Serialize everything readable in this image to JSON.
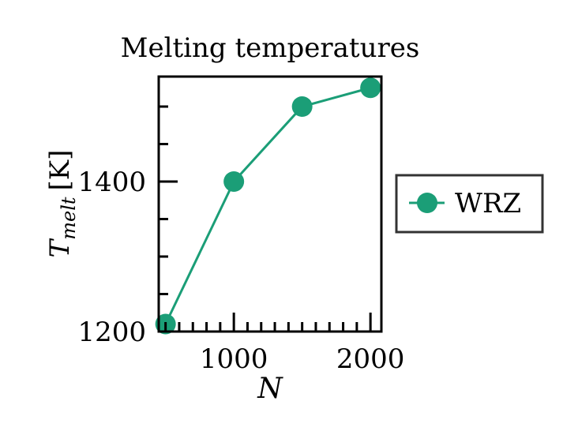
{
  "chart_data": {
    "type": "line",
    "title": "Melting temperatures",
    "xlabel": "N",
    "ylabel_main": "T",
    "ylabel_sub": "melt",
    "ylabel_unit": "[K]",
    "xlim": [
      450,
      2080
    ],
    "ylim": [
      1200,
      1540
    ],
    "x_ticks_major": [
      1000,
      2000
    ],
    "x_ticks_minor": [
      500,
      600,
      700,
      800,
      900,
      1100,
      1200,
      1300,
      1400,
      1500,
      1600,
      1700,
      1800,
      1900
    ],
    "y_ticks_major": [
      1200,
      1400
    ],
    "y_ticks_minor": [
      1250,
      1300,
      1350,
      1450,
      1500
    ],
    "x_tick_labels": [
      "1000",
      "2000"
    ],
    "y_tick_labels": [
      "1200",
      "1400"
    ],
    "grid": false,
    "legend_position": "outside-right",
    "series": [
      {
        "name": "WRZ",
        "color": "#1b9e77",
        "marker": "circle",
        "x": [
          500,
          1000,
          1500,
          2000
        ],
        "y": [
          1210,
          1400,
          1500,
          1525
        ]
      }
    ]
  }
}
